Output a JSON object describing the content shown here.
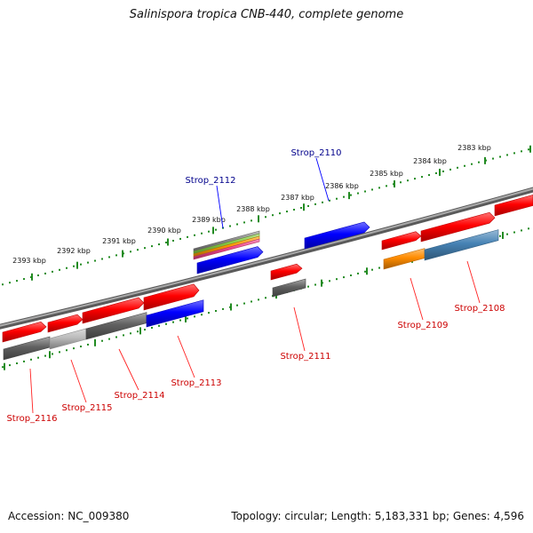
{
  "title": "Salinispora tropica CNB-440, complete genome",
  "footer": {
    "accession": "Accession: NC_009380",
    "stats": "Topology: circular; Length: 5,183,331 bp; Genes: 4,596"
  },
  "scale": {
    "unit": "kbp",
    "ticks": [
      "2383 kbp",
      "2384 kbp",
      "2385 kbp",
      "2386 kbp",
      "2387 kbp",
      "2388 kbp",
      "2389 kbp",
      "2390 kbp",
      "2391 kbp",
      "2392 kbp",
      "2393 kbp"
    ]
  },
  "colors": {
    "backbone": "#808080",
    "scale_ticks": "#228b22",
    "forward_cds": "#ff0000",
    "label_blue": "#00008b",
    "label_red": "#cc0000",
    "blue_gene": "#0000ff",
    "orange_gene": "#ff8c00",
    "steel_gene": "#4682b4",
    "dark_gray_gene": "#606060",
    "light_gray_gene": "#bbbbbb"
  },
  "gene_labels": [
    {
      "key": "strop_2110",
      "text": "Strop_2110",
      "color": "blue"
    },
    {
      "key": "strop_2112",
      "text": "Strop_2112",
      "color": "blue"
    },
    {
      "key": "strop_2108",
      "text": "Strop_2108",
      "color": "red"
    },
    {
      "key": "strop_2109",
      "text": "Strop_2109",
      "color": "red"
    },
    {
      "key": "strop_2111",
      "text": "Strop_2111",
      "color": "red"
    },
    {
      "key": "strop_2113",
      "text": "Strop_2113",
      "color": "red"
    },
    {
      "key": "strop_2114",
      "text": "Strop_2114",
      "color": "red"
    },
    {
      "key": "strop_2115",
      "text": "Strop_2115",
      "color": "red"
    },
    {
      "key": "strop_2116",
      "text": "Strop_2116",
      "color": "red"
    }
  ]
}
